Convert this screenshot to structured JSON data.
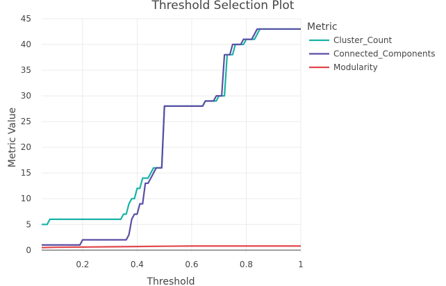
{
  "chart_data": {
    "type": "line",
    "title": "Threshold Selection Plot",
    "xlabel": "Threshold",
    "ylabel": "Metric Value",
    "xlim": [
      0.05,
      1.0
    ],
    "ylim": [
      -0.5,
      45
    ],
    "xticks": [
      0.2,
      0.4,
      0.6,
      0.8,
      1
    ],
    "xtick_labels": [
      "0.2",
      "0.4",
      "0.6",
      "0.8",
      "1"
    ],
    "yticks": [
      0,
      5,
      10,
      15,
      20,
      25,
      30,
      35,
      40,
      45
    ],
    "ytick_labels": [
      "0",
      "5",
      "10",
      "15",
      "20",
      "25",
      "30",
      "35",
      "40",
      "45"
    ],
    "grid": true,
    "legend": {
      "title": "Metric",
      "placement": "top-right"
    },
    "series": [
      {
        "name": "Cluster_Count",
        "color": "#17b3a6",
        "x": [
          0.05,
          0.07,
          0.08,
          0.34,
          0.35,
          0.36,
          0.37,
          0.38,
          0.39,
          0.4,
          0.41,
          0.42,
          0.43,
          0.44,
          0.45,
          0.46,
          0.47,
          0.48,
          0.49,
          0.5,
          0.51,
          0.52,
          0.53,
          0.64,
          0.65,
          0.66,
          0.67,
          0.68,
          0.69,
          0.7,
          0.71,
          0.72,
          0.73,
          0.74,
          0.75,
          0.76,
          0.77,
          0.78,
          0.79,
          0.8,
          0.81,
          0.82,
          0.83,
          0.84,
          0.85,
          0.86,
          0.87,
          0.88,
          1.0
        ],
        "y": [
          5,
          5,
          6,
          6,
          7,
          7,
          9,
          10,
          10,
          12,
          12,
          14,
          14,
          14,
          15,
          16,
          16,
          16,
          16,
          28,
          28,
          28,
          28,
          28,
          29,
          29,
          29,
          29,
          29,
          30,
          30,
          30,
          38,
          38,
          38,
          40,
          40,
          40,
          40,
          41,
          41,
          41,
          41,
          42,
          43,
          43,
          43,
          43,
          43
        ]
      },
      {
        "name": "Connected_Components",
        "color": "#5a4ea3",
        "x": [
          0.05,
          0.19,
          0.2,
          0.36,
          0.37,
          0.38,
          0.39,
          0.4,
          0.41,
          0.42,
          0.43,
          0.44,
          0.45,
          0.46,
          0.47,
          0.48,
          0.49,
          0.5,
          0.51,
          0.52,
          0.53,
          0.64,
          0.65,
          0.66,
          0.67,
          0.68,
          0.69,
          0.7,
          0.71,
          0.72,
          0.73,
          0.74,
          0.75,
          0.76,
          0.77,
          0.78,
          0.79,
          0.8,
          0.81,
          0.82,
          0.83,
          0.84,
          0.85,
          0.86,
          0.87,
          0.88,
          1.0
        ],
        "y": [
          1,
          1,
          2,
          2,
          3,
          6,
          7,
          7,
          9,
          9,
          13,
          13,
          14,
          15,
          16,
          16,
          16,
          28,
          28,
          28,
          28,
          28,
          29,
          29,
          29,
          29,
          30,
          30,
          30,
          38,
          38,
          38,
          40,
          40,
          40,
          40,
          41,
          41,
          41,
          41,
          42,
          43,
          43,
          43,
          43,
          43,
          43
        ]
      },
      {
        "name": "Modularity",
        "color": "#e0474c",
        "x": [
          0.05,
          0.1,
          0.2,
          0.3,
          0.4,
          0.5,
          0.6,
          0.7,
          0.8,
          0.9,
          1.0
        ],
        "y": [
          0.5,
          0.55,
          0.6,
          0.65,
          0.7,
          0.75,
          0.8,
          0.8,
          0.8,
          0.8,
          0.8
        ]
      }
    ]
  }
}
